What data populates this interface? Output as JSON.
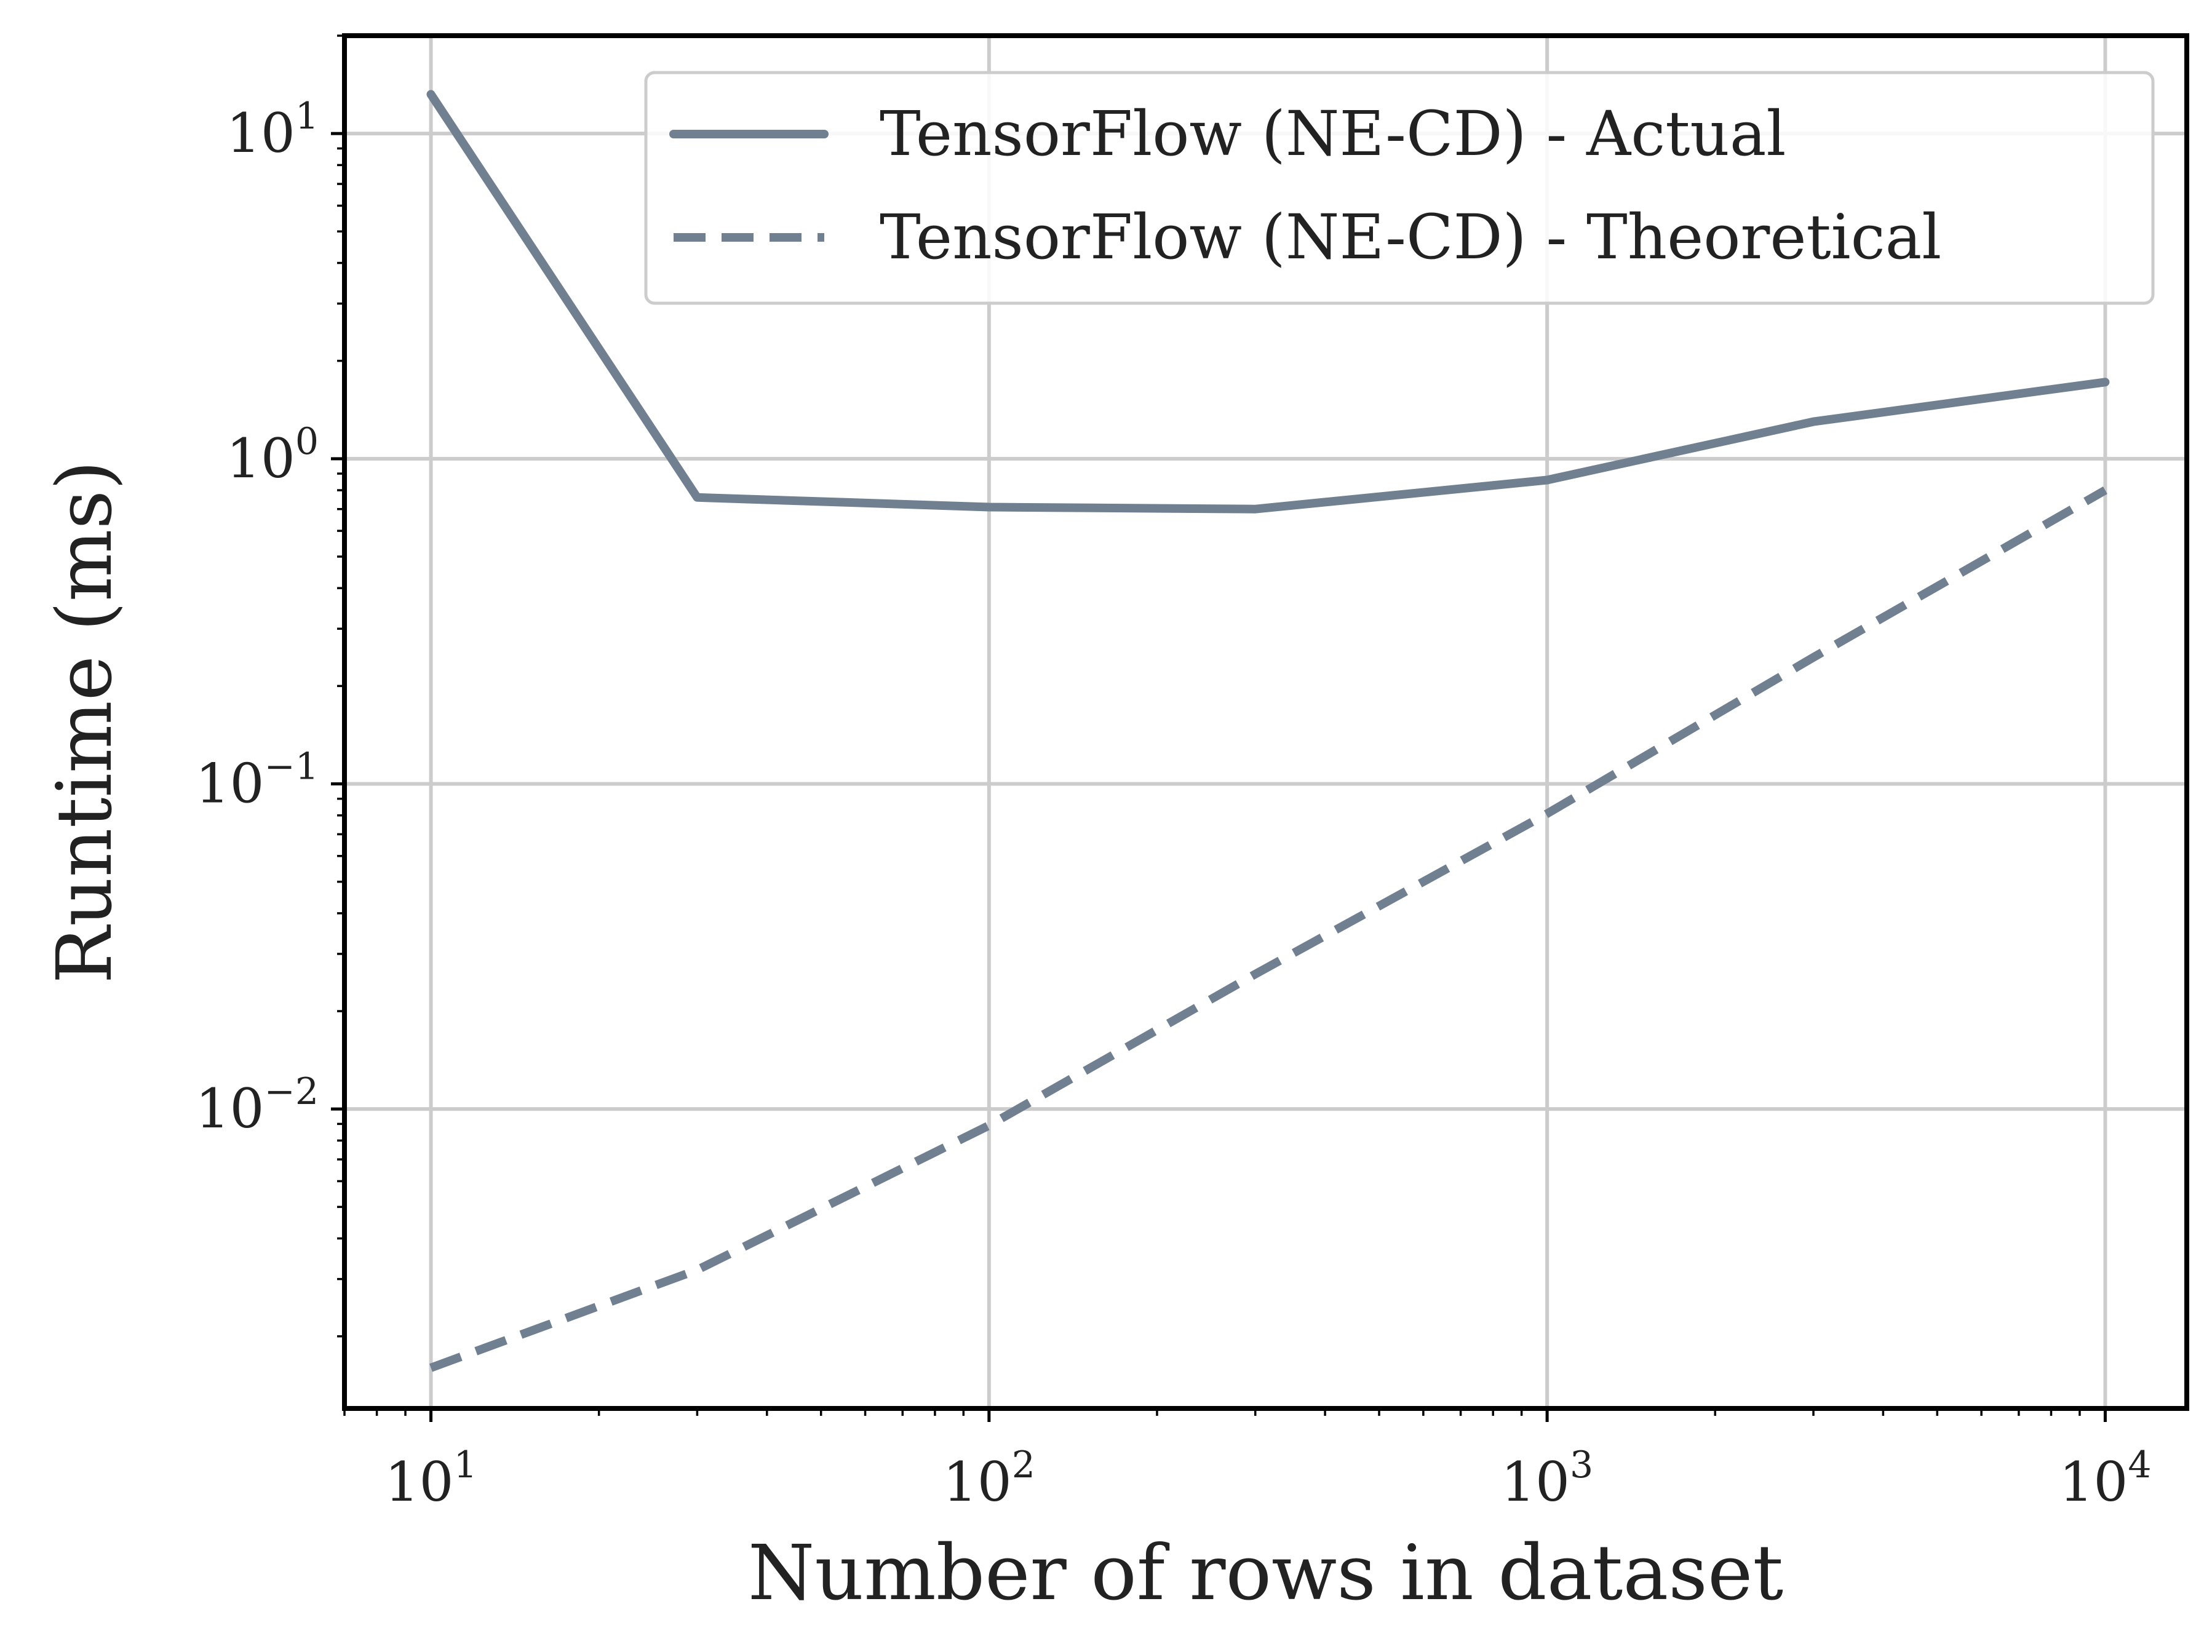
{
  "chart_data": {
    "type": "line",
    "title": "",
    "xlabel": "Number of rows in dataset",
    "ylabel": "Runtime (ms)",
    "x_scale": "log",
    "y_scale": "log",
    "xlim": [
      7,
      14000
    ],
    "ylim": [
      0.0012,
      20
    ],
    "grid": true,
    "legend_position": "top-right",
    "x_ticks": [
      {
        "base": "10",
        "exp": "1",
        "value": 10
      },
      {
        "base": "10",
        "exp": "2",
        "value": 100
      },
      {
        "base": "10",
        "exp": "3",
        "value": 1000
      },
      {
        "base": "10",
        "exp": "4",
        "value": 10000
      }
    ],
    "y_ticks": [
      {
        "base": "10",
        "exp": "−2",
        "value": 0.01
      },
      {
        "base": "10",
        "exp": "−1",
        "value": 0.1
      },
      {
        "base": "10",
        "exp": "0",
        "value": 1
      },
      {
        "base": "10",
        "exp": "1",
        "value": 10
      }
    ],
    "series": [
      {
        "name": "TensorFlow (NE-CD) - Actual",
        "style": "solid",
        "color": "#708090",
        "x": [
          10,
          30,
          100,
          300,
          1000,
          3000,
          10000
        ],
        "y": [
          13.2,
          0.76,
          0.71,
          0.7,
          0.86,
          1.3,
          1.72
        ]
      },
      {
        "name": "TensorFlow (NE-CD) - Theoretical",
        "style": "dashed",
        "color": "#708090",
        "x": [
          10,
          30,
          100,
          300,
          1000,
          3000,
          10000
        ],
        "y": [
          0.0016,
          0.0032,
          0.0089,
          0.026,
          0.081,
          0.245,
          0.8
        ]
      }
    ]
  }
}
